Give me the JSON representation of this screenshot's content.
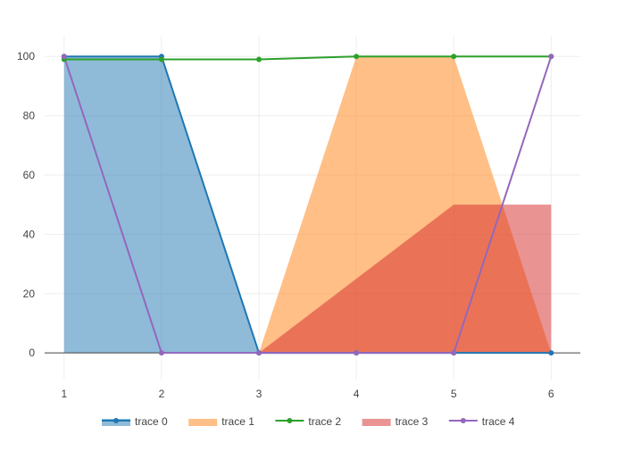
{
  "chart_data": {
    "type": "area",
    "x": [
      1,
      2,
      3,
      4,
      5,
      6
    ],
    "xlim": [
      0.8,
      6.3
    ],
    "ylim": [
      -9,
      107
    ],
    "x_ticks": [
      1,
      2,
      3,
      4,
      5,
      6
    ],
    "y_ticks": [
      0,
      20,
      40,
      60,
      80,
      100
    ],
    "grid": true,
    "legend_position": "bottom-center",
    "title": "",
    "xlabel": "",
    "ylabel": "",
    "series": [
      {
        "name": "trace 0",
        "values": [
          100,
          100,
          0,
          0,
          0,
          0
        ],
        "color": "#1f77b4",
        "fill": "tozeroy",
        "fill_color": "rgba(31,119,180,0.5)",
        "line": true,
        "markers": true
      },
      {
        "name": "trace 1",
        "values": [
          0,
          0,
          0,
          100,
          100,
          0
        ],
        "color": "#ff7f0e",
        "fill": "tozeroy",
        "fill_color": "rgba(255,127,14,0.5)",
        "line": false,
        "markers": false
      },
      {
        "name": "trace 2",
        "values": [
          99,
          99,
          99,
          100,
          100,
          100
        ],
        "color": "#2ca02c",
        "fill": "none",
        "line": true,
        "markers": true
      },
      {
        "name": "trace 3",
        "values": [
          0,
          0,
          0,
          25,
          50,
          50
        ],
        "color": "#d62728",
        "fill": "tozeroy",
        "fill_color": "rgba(214,39,40,0.5)",
        "line": false,
        "markers": false
      },
      {
        "name": "trace 4",
        "values": [
          100,
          0,
          0,
          0,
          0,
          100
        ],
        "color": "#9467bd",
        "fill": "none",
        "line": true,
        "markers": true
      }
    ]
  }
}
